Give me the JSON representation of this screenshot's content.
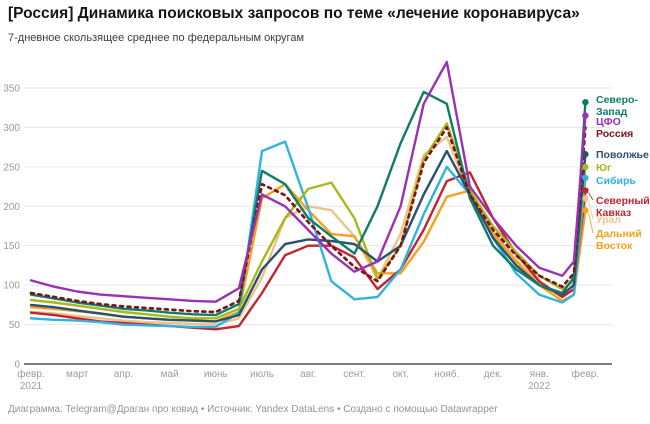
{
  "header": {
    "title": "[Россия] Динамика поисковых запросов по теме «лечение коронавируса»",
    "subtitle": "7-дневное скользящее среднее по федеральным округам"
  },
  "footer": {
    "text": "Диаграмма: Telegram@Драган про ковид • Источник: Yandex DataLens • Создано с помощью Datawrapper"
  },
  "chart_data": {
    "type": "line",
    "title": "[Россия] Динамика поисковых запросов по теме «лечение коронавируса»",
    "subtitle": "7-дневное скользящее среднее по федеральным округам",
    "ylabel": "",
    "xlabel": "",
    "ylim": [
      0,
      390
    ],
    "grid": "horizontal",
    "legend_position": "right-direct-labels",
    "y_ticks": [
      0,
      50,
      100,
      150,
      200,
      250,
      300,
      350
    ],
    "x_ticks": [
      {
        "label": "февр.",
        "sub": "2021"
      },
      {
        "label": "март"
      },
      {
        "label": "апр."
      },
      {
        "label": "май"
      },
      {
        "label": "июнь"
      },
      {
        "label": "июль"
      },
      {
        "label": "авг."
      },
      {
        "label": "сент."
      },
      {
        "label": "окт."
      },
      {
        "label": "нояб."
      },
      {
        "label": "дек."
      },
      {
        "label": "янв.",
        "sub": "2022"
      },
      {
        "label": "февр."
      }
    ],
    "t_months": [
      0,
      0.5,
      1,
      1.5,
      2,
      2.5,
      3,
      3.5,
      4,
      4.5,
      5,
      5.5,
      6,
      6.5,
      7,
      7.5,
      8,
      8.5,
      9,
      9.5,
      10,
      10.5,
      11,
      11.5,
      11.75,
      12
    ],
    "series": [
      {
        "id": "ural",
        "name": "Урал",
        "color": "#ecc488",
        "dashed": false,
        "dot": true,
        "label_lines": [
          "Урал"
        ],
        "label_y": 223,
        "values": [
          66,
          64,
          61,
          58,
          55,
          53,
          52,
          51,
          50,
          58,
          110,
          185,
          200,
          195,
          162,
          108,
          165,
          265,
          288,
          215,
          168,
          132,
          103,
          85,
          95,
          210
        ]
      },
      {
        "id": "dalniy-vostok",
        "name": "Дальний Восток",
        "color": "#f5a01f",
        "dashed": false,
        "dot": true,
        "label_lines": [
          "Дальний",
          "Восток"
        ],
        "label_y": 237,
        "values": [
          72,
          70,
          67,
          64,
          60,
          58,
          56,
          55,
          54,
          66,
          210,
          228,
          195,
          165,
          162,
          115,
          115,
          155,
          212,
          220,
          165,
          130,
          100,
          80,
          88,
          195
        ]
      },
      {
        "id": "severnyi-kavkaz",
        "name": "Северный Кавказ",
        "color": "#c22430",
        "dashed": false,
        "dot": true,
        "label_lines": [
          "Северный",
          "Кавказ"
        ],
        "label_y": 204,
        "values": [
          65,
          62,
          58,
          54,
          52,
          50,
          48,
          46,
          44,
          48,
          90,
          138,
          150,
          150,
          135,
          95,
          120,
          170,
          232,
          243,
          185,
          140,
          105,
          85,
          95,
          220
        ]
      },
      {
        "id": "sibir",
        "name": "Сибирь",
        "color": "#31b2e0",
        "dashed": false,
        "dot": true,
        "label_lines": [
          "Сибирь"
        ],
        "label_y": 184,
        "values": [
          58,
          56,
          55,
          53,
          50,
          49,
          48,
          47,
          47,
          65,
          270,
          282,
          198,
          105,
          82,
          85,
          120,
          190,
          250,
          215,
          160,
          115,
          88,
          78,
          88,
          236
        ]
      },
      {
        "id": "yug",
        "name": "Юг",
        "color": "#a9b819",
        "dashed": false,
        "dot": true,
        "label_lines": [
          "Юг"
        ],
        "label_y": 171,
        "values": [
          81,
          78,
          74,
          70,
          66,
          63,
          60,
          58,
          58,
          70,
          130,
          185,
          222,
          230,
          185,
          108,
          150,
          260,
          305,
          220,
          175,
          142,
          112,
          95,
          105,
          250
        ]
      },
      {
        "id": "povolzhye",
        "name": "Поволжье",
        "color": "#2b5171",
        "dashed": false,
        "dot": true,
        "label_lines": [
          "Поволжье"
        ],
        "label_y": 158,
        "values": [
          75,
          72,
          68,
          64,
          60,
          58,
          56,
          55,
          54,
          62,
          120,
          152,
          158,
          156,
          152,
          130,
          150,
          215,
          270,
          215,
          160,
          125,
          100,
          88,
          100,
          266
        ]
      },
      {
        "id": "severo-zapad",
        "name": "Северо-Запад",
        "color": "#0e7d68",
        "dashed": false,
        "dot": true,
        "label_lines": [
          "Северо-",
          "Запад"
        ],
        "label_y": 103,
        "values": [
          88,
          83,
          78,
          74,
          70,
          68,
          65,
          63,
          62,
          76,
          245,
          228,
          185,
          162,
          140,
          200,
          280,
          345,
          330,
          210,
          150,
          120,
          100,
          90,
          110,
          332
        ]
      },
      {
        "id": "rossiya",
        "name": "Россия",
        "color": "#7e1518",
        "dashed": true,
        "dot": false,
        "label_lines": [
          "Россия"
        ],
        "label_y": 137,
        "values": [
          90,
          85,
          80,
          76,
          73,
          71,
          69,
          67,
          66,
          80,
          228,
          214,
          180,
          150,
          123,
          105,
          150,
          255,
          300,
          215,
          170,
          138,
          112,
          98,
          115,
          300
        ]
      },
      {
        "id": "cfo",
        "name": "ЦФО",
        "color": "#9a31b4",
        "dashed": false,
        "dot": true,
        "label_lines": [
          "ЦФО"
        ],
        "label_y": 125,
        "values": [
          106,
          98,
          92,
          88,
          86,
          84,
          82,
          80,
          79,
          96,
          215,
          200,
          170,
          140,
          117,
          130,
          200,
          330,
          383,
          225,
          185,
          150,
          122,
          112,
          130,
          315
        ]
      }
    ],
    "axis_colors": {
      "grid": "#e6e6e6",
      "baseline": "#7d7d7d",
      "tick_text": "#9b9b9b"
    }
  }
}
